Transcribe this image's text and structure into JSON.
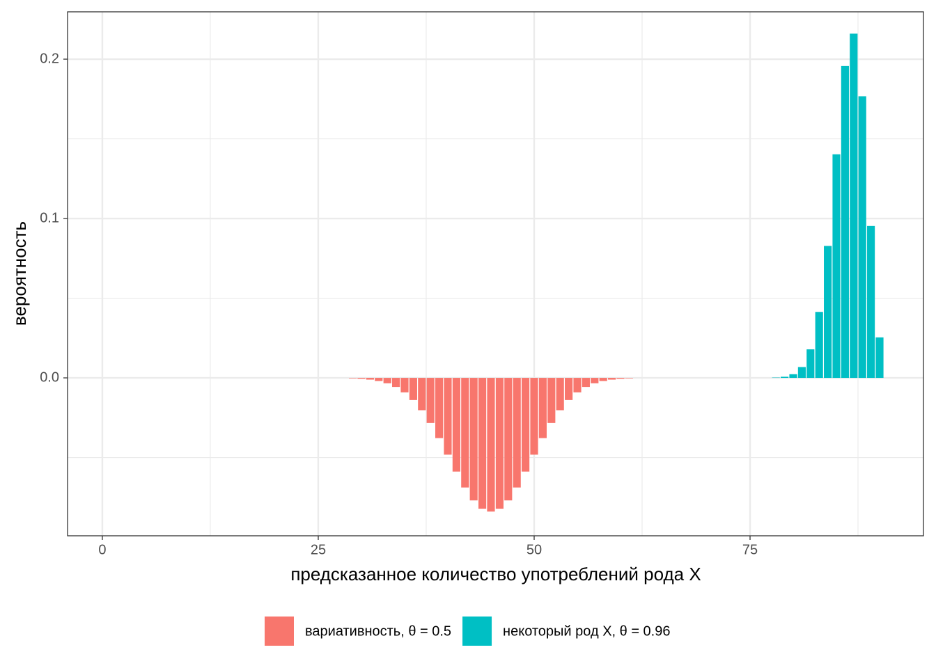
{
  "chart_data": {
    "type": "bar",
    "xlabel": "предсказанное количество употреблений рода X",
    "ylabel": "вероятность",
    "xlim": [
      -4.03,
      95.08
    ],
    "ylim": [
      -0.0991,
      0.2297
    ],
    "xticks": [
      0,
      25,
      50,
      75
    ],
    "yticks": [
      {
        "value": 0,
        "label": "0.0"
      },
      0.1,
      0.2
    ],
    "grid": true,
    "legend": "bottom",
    "series": [
      {
        "name": "вариативность, θ = 0.5",
        "color": "#f8766d",
        "x": [
          29,
          30,
          31,
          32,
          33,
          34,
          35,
          36,
          37,
          38,
          39,
          40,
          41,
          42,
          43,
          44,
          45,
          46,
          47,
          48,
          49,
          50,
          51,
          52,
          53,
          54,
          55,
          56,
          57,
          58,
          59,
          60,
          61
        ],
        "values": [
          -0.0003,
          -0.0006,
          -0.0011,
          -0.002,
          -0.0034,
          -0.0057,
          -0.0091,
          -0.0139,
          -0.0203,
          -0.0283,
          -0.0378,
          -0.0482,
          -0.0588,
          -0.0688,
          -0.0769,
          -0.0821,
          -0.0839,
          -0.0821,
          -0.0769,
          -0.0688,
          -0.0588,
          -0.0482,
          -0.0378,
          -0.0283,
          -0.0203,
          -0.0139,
          -0.0091,
          -0.0057,
          -0.0034,
          -0.002,
          -0.0011,
          -0.0006,
          -0.0003
        ]
      },
      {
        "name": "некоторый род X, θ = 0.96",
        "color": "#00bfc4",
        "x": [
          78,
          79,
          80,
          81,
          82,
          83,
          84,
          85,
          86,
          87,
          88,
          89,
          90
        ],
        "values": [
          0.0002,
          0.0007,
          0.0023,
          0.0068,
          0.0179,
          0.0414,
          0.0828,
          0.1403,
          0.1957,
          0.216,
          0.1767,
          0.0953,
          0.0254
        ]
      }
    ]
  }
}
